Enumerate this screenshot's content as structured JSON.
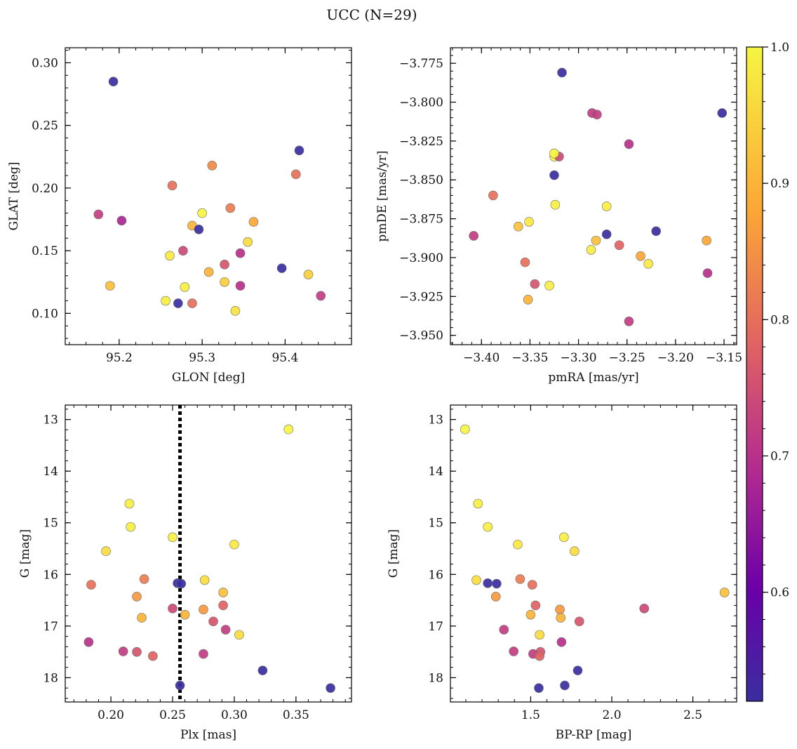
{
  "figure": {
    "suptitle": "UCC (N=29)"
  },
  "colorbar": {
    "colormap": "plasma",
    "range": [
      0.52,
      1.0
    ],
    "ticks": [
      "0.6",
      "0.7",
      "0.8",
      "0.9",
      "1.0"
    ]
  },
  "chart_data": [
    {
      "type": "scatter",
      "xlabel": "GLON [deg]",
      "ylabel": "GLAT [deg]",
      "xlim": [
        95.135,
        95.48
      ],
      "ylim": [
        0.075,
        0.312
      ],
      "inverted_y": false,
      "xticks": [
        "95.2",
        "95.3",
        "95.4"
      ],
      "yticks": [
        "0.10",
        "0.15",
        "0.20",
        "0.25",
        "0.30"
      ],
      "points": [
        {
          "x": 95.193,
          "y": 0.285,
          "c": 0.52
        },
        {
          "x": 95.417,
          "y": 0.23,
          "c": 0.52
        },
        {
          "x": 95.413,
          "y": 0.211,
          "c": 0.8
        },
        {
          "x": 95.312,
          "y": 0.218,
          "c": 0.84
        },
        {
          "x": 95.264,
          "y": 0.202,
          "c": 0.8
        },
        {
          "x": 95.175,
          "y": 0.179,
          "c": 0.72
        },
        {
          "x": 95.203,
          "y": 0.174,
          "c": 0.68
        },
        {
          "x": 95.3,
          "y": 0.18,
          "c": 1.0
        },
        {
          "x": 95.334,
          "y": 0.184,
          "c": 0.82
        },
        {
          "x": 95.362,
          "y": 0.173,
          "c": 0.88
        },
        {
          "x": 95.288,
          "y": 0.17,
          "c": 0.9
        },
        {
          "x": 95.296,
          "y": 0.167,
          "c": 0.52
        },
        {
          "x": 95.355,
          "y": 0.157,
          "c": 0.96
        },
        {
          "x": 95.277,
          "y": 0.15,
          "c": 0.74
        },
        {
          "x": 95.346,
          "y": 0.148,
          "c": 0.7
        },
        {
          "x": 95.261,
          "y": 0.146,
          "c": 0.98
        },
        {
          "x": 95.327,
          "y": 0.139,
          "c": 0.76
        },
        {
          "x": 95.396,
          "y": 0.136,
          "c": 0.52
        },
        {
          "x": 95.308,
          "y": 0.133,
          "c": 0.9
        },
        {
          "x": 95.428,
          "y": 0.131,
          "c": 0.94
        },
        {
          "x": 95.327,
          "y": 0.125,
          "c": 0.94
        },
        {
          "x": 95.346,
          "y": 0.122,
          "c": 0.7
        },
        {
          "x": 95.189,
          "y": 0.122,
          "c": 0.92
        },
        {
          "x": 95.279,
          "y": 0.121,
          "c": 0.99
        },
        {
          "x": 95.443,
          "y": 0.114,
          "c": 0.72
        },
        {
          "x": 95.256,
          "y": 0.11,
          "c": 0.99
        },
        {
          "x": 95.271,
          "y": 0.108,
          "c": 0.52
        },
        {
          "x": 95.288,
          "y": 0.108,
          "c": 0.8
        },
        {
          "x": 95.34,
          "y": 0.102,
          "c": 0.97
        }
      ]
    },
    {
      "type": "scatter",
      "xlabel": "pmRA [mas/yr]",
      "ylabel": "pmDE [mas/yr]",
      "xlim": [
        -3.432,
        -3.137
      ],
      "ylim": [
        -3.956,
        -3.765
      ],
      "inverted_y": false,
      "xticks": [
        "−3.40",
        "−3.35",
        "−3.30",
        "−3.25",
        "−3.20",
        "−3.15"
      ],
      "yticks": [
        "−3.775",
        "−3.800",
        "−3.825",
        "−3.850",
        "−3.875",
        "−3.900",
        "−3.925",
        "−3.950"
      ],
      "tickvalues_x": [
        -3.4,
        -3.35,
        -3.3,
        -3.25,
        -3.2,
        -3.15
      ],
      "tickvalues_y": [
        -3.775,
        -3.8,
        -3.825,
        -3.85,
        -3.875,
        -3.9,
        -3.925,
        -3.95
      ],
      "points": [
        {
          "x": -3.317,
          "y": -3.781,
          "c": 0.52
        },
        {
          "x": -3.152,
          "y": -3.807,
          "c": 0.52
        },
        {
          "x": -3.286,
          "y": -3.807,
          "c": 0.72
        },
        {
          "x": -3.281,
          "y": -3.808,
          "c": 0.72
        },
        {
          "x": -3.248,
          "y": -3.827,
          "c": 0.7
        },
        {
          "x": -3.325,
          "y": -3.835,
          "c": 1.0
        },
        {
          "x": -3.32,
          "y": -3.835,
          "c": 0.74
        },
        {
          "x": -3.325,
          "y": -3.833,
          "c": 1.0
        },
        {
          "x": -3.325,
          "y": -3.847,
          "c": 0.52
        },
        {
          "x": -3.388,
          "y": -3.86,
          "c": 0.8
        },
        {
          "x": -3.324,
          "y": -3.866,
          "c": 0.99
        },
        {
          "x": -3.271,
          "y": -3.867,
          "c": 0.99
        },
        {
          "x": -3.351,
          "y": -3.877,
          "c": 0.98
        },
        {
          "x": -3.362,
          "y": -3.88,
          "c": 0.92
        },
        {
          "x": -3.22,
          "y": -3.883,
          "c": 0.52
        },
        {
          "x": -3.271,
          "y": -3.885,
          "c": 0.52
        },
        {
          "x": -3.408,
          "y": -3.886,
          "c": 0.72
        },
        {
          "x": -3.282,
          "y": -3.889,
          "c": 0.92
        },
        {
          "x": -3.168,
          "y": -3.889,
          "c": 0.88
        },
        {
          "x": -3.258,
          "y": -3.892,
          "c": 0.78
        },
        {
          "x": -3.287,
          "y": -3.895,
          "c": 0.99
        },
        {
          "x": -3.236,
          "y": -3.899,
          "c": 0.88
        },
        {
          "x": -3.355,
          "y": -3.903,
          "c": 0.8
        },
        {
          "x": -3.228,
          "y": -3.904,
          "c": 0.98
        },
        {
          "x": -3.167,
          "y": -3.91,
          "c": 0.7
        },
        {
          "x": -3.345,
          "y": -3.917,
          "c": 0.76
        },
        {
          "x": -3.33,
          "y": -3.918,
          "c": 0.99
        },
        {
          "x": -3.352,
          "y": -3.927,
          "c": 0.9
        },
        {
          "x": -3.248,
          "y": -3.941,
          "c": 0.72
        }
      ]
    },
    {
      "type": "scatter",
      "xlabel": "Plx [mas]",
      "ylabel": "G [mag]",
      "xlim": [
        0.163,
        0.395
      ],
      "ylim": [
        18.47,
        12.72
      ],
      "inverted_y": true,
      "xticks": [
        "0.20",
        "0.25",
        "0.30",
        "0.35"
      ],
      "yticks": [
        "13",
        "14",
        "15",
        "16",
        "17",
        "18"
      ],
      "vline": {
        "x": 0.256,
        "style": "dotted"
      },
      "points": [
        {
          "x": 0.344,
          "y": 13.19,
          "c": 1.0
        },
        {
          "x": 0.215,
          "y": 14.63,
          "c": 0.99
        },
        {
          "x": 0.216,
          "y": 15.08,
          "c": 0.99
        },
        {
          "x": 0.25,
          "y": 15.28,
          "c": 0.99
        },
        {
          "x": 0.3,
          "y": 15.42,
          "c": 0.98
        },
        {
          "x": 0.196,
          "y": 15.55,
          "c": 0.96
        },
        {
          "x": 0.227,
          "y": 16.09,
          "c": 0.82
        },
        {
          "x": 0.276,
          "y": 16.11,
          "c": 0.96
        },
        {
          "x": 0.254,
          "y": 16.17,
          "c": 0.52
        },
        {
          "x": 0.257,
          "y": 16.18,
          "c": 0.52
        },
        {
          "x": 0.184,
          "y": 16.2,
          "c": 0.8
        },
        {
          "x": 0.291,
          "y": 16.35,
          "c": 0.92
        },
        {
          "x": 0.221,
          "y": 16.43,
          "c": 0.86
        },
        {
          "x": 0.291,
          "y": 16.6,
          "c": 0.78
        },
        {
          "x": 0.25,
          "y": 16.66,
          "c": 0.74
        },
        {
          "x": 0.275,
          "y": 16.68,
          "c": 0.86
        },
        {
          "x": 0.26,
          "y": 16.78,
          "c": 0.9
        },
        {
          "x": 0.225,
          "y": 16.84,
          "c": 0.9
        },
        {
          "x": 0.283,
          "y": 16.91,
          "c": 0.76
        },
        {
          "x": 0.293,
          "y": 17.07,
          "c": 0.72
        },
        {
          "x": 0.304,
          "y": 17.17,
          "c": 0.96
        },
        {
          "x": 0.182,
          "y": 17.31,
          "c": 0.7
        },
        {
          "x": 0.21,
          "y": 17.49,
          "c": 0.72
        },
        {
          "x": 0.221,
          "y": 17.5,
          "c": 0.76
        },
        {
          "x": 0.275,
          "y": 17.54,
          "c": 0.72
        },
        {
          "x": 0.234,
          "y": 17.58,
          "c": 0.78
        },
        {
          "x": 0.323,
          "y": 17.86,
          "c": 0.52
        },
        {
          "x": 0.256,
          "y": 18.15,
          "c": 0.52
        },
        {
          "x": 0.378,
          "y": 18.2,
          "c": 0.52
        }
      ]
    },
    {
      "type": "scatter",
      "xlabel": "BP-RP [mag]",
      "ylabel": "G [mag]",
      "xlim": [
        1.005,
        2.77
      ],
      "ylim": [
        18.47,
        12.72
      ],
      "inverted_y": true,
      "xticks": [
        "1.5",
        "2.0",
        "2.5"
      ],
      "yticks": [
        "13",
        "14",
        "15",
        "16",
        "17",
        "18"
      ],
      "points": [
        {
          "x": 1.095,
          "y": 13.19,
          "c": 1.0
        },
        {
          "x": 1.175,
          "y": 14.63,
          "c": 0.99
        },
        {
          "x": 1.235,
          "y": 15.08,
          "c": 0.99
        },
        {
          "x": 1.705,
          "y": 15.28,
          "c": 0.99
        },
        {
          "x": 1.42,
          "y": 15.42,
          "c": 0.98
        },
        {
          "x": 1.77,
          "y": 15.55,
          "c": 0.96
        },
        {
          "x": 1.165,
          "y": 16.11,
          "c": 0.96
        },
        {
          "x": 1.435,
          "y": 16.09,
          "c": 0.82
        },
        {
          "x": 1.235,
          "y": 16.17,
          "c": 0.52
        },
        {
          "x": 1.29,
          "y": 16.18,
          "c": 0.52
        },
        {
          "x": 1.51,
          "y": 16.2,
          "c": 0.8
        },
        {
          "x": 2.695,
          "y": 16.35,
          "c": 0.92
        },
        {
          "x": 1.285,
          "y": 16.43,
          "c": 0.86
        },
        {
          "x": 1.53,
          "y": 16.6,
          "c": 0.78
        },
        {
          "x": 2.2,
          "y": 16.66,
          "c": 0.74
        },
        {
          "x": 1.68,
          "y": 16.68,
          "c": 0.86
        },
        {
          "x": 1.5,
          "y": 16.78,
          "c": 0.9
        },
        {
          "x": 1.685,
          "y": 16.84,
          "c": 0.9
        },
        {
          "x": 1.8,
          "y": 16.91,
          "c": 0.76
        },
        {
          "x": 1.335,
          "y": 17.07,
          "c": 0.72
        },
        {
          "x": 1.555,
          "y": 17.17,
          "c": 0.96
        },
        {
          "x": 1.69,
          "y": 17.31,
          "c": 0.7
        },
        {
          "x": 1.395,
          "y": 17.49,
          "c": 0.72
        },
        {
          "x": 1.56,
          "y": 17.5,
          "c": 0.76
        },
        {
          "x": 1.515,
          "y": 17.54,
          "c": 0.72
        },
        {
          "x": 1.555,
          "y": 17.58,
          "c": 0.78
        },
        {
          "x": 1.79,
          "y": 17.86,
          "c": 0.52
        },
        {
          "x": 1.71,
          "y": 18.15,
          "c": 0.52
        },
        {
          "x": 1.55,
          "y": 18.2,
          "c": 0.52
        }
      ]
    }
  ]
}
